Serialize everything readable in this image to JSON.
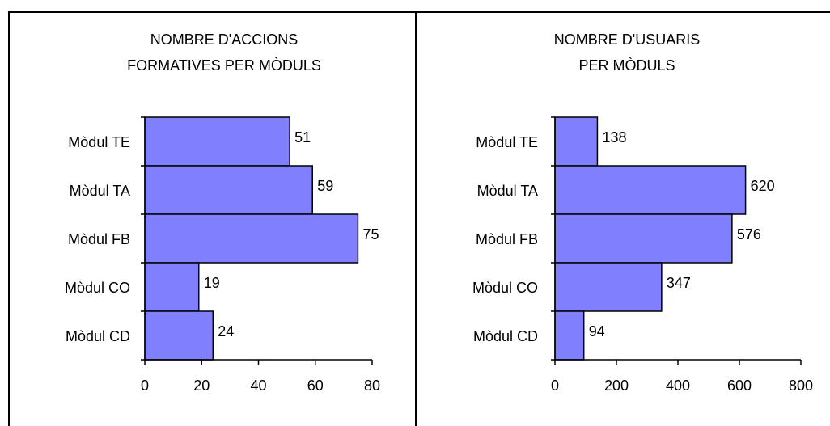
{
  "chart_data": [
    {
      "type": "bar",
      "orientation": "horizontal",
      "title": [
        "NOMBRE D'ACCIONS",
        "FORMATIVES PER MÒDULS"
      ],
      "categories": [
        "Mòdul TE",
        "Mòdul TA",
        "Mòdul FB",
        "Mòdul CO",
        "Mòdul CD"
      ],
      "values": [
        51,
        59,
        75,
        19,
        24
      ],
      "color": "#8080ff",
      "xlim": [
        0,
        80
      ],
      "xticks": [
        0,
        20,
        40,
        60,
        80
      ]
    },
    {
      "type": "bar",
      "orientation": "horizontal",
      "title": [
        "NOMBRE D'USUARIS",
        "PER MÒDULS"
      ],
      "categories": [
        "Mòdul TE",
        "Mòdul TA",
        "Mòdul FB",
        "Mòdul CO",
        "Mòdul CD"
      ],
      "values": [
        138,
        620,
        576,
        347,
        94
      ],
      "color": "#8080ff",
      "xlim": [
        0,
        800
      ],
      "xticks": [
        0,
        200,
        400,
        600,
        800
      ]
    }
  ]
}
